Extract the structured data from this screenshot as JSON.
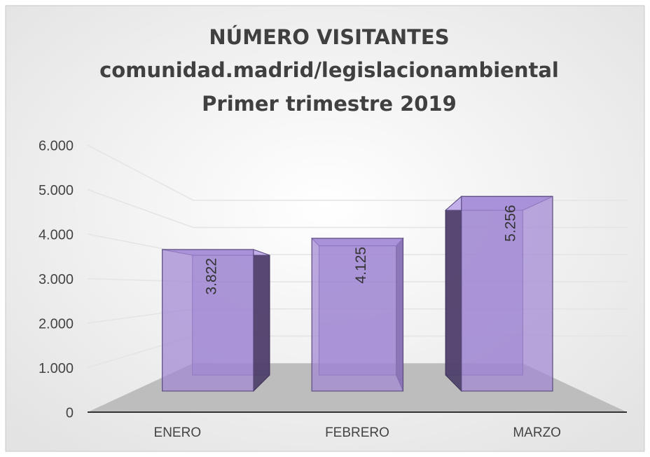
{
  "chart_data": {
    "type": "bar3d",
    "title": [
      "NÚMERO VISITANTES",
      "comunidad.madrid/legislacionambiental",
      "Primer trimestre 2019"
    ],
    "categories": [
      "ENERO",
      "FEBRERO",
      "MARZO"
    ],
    "values": [
      3822,
      4125,
      5256
    ],
    "value_labels": [
      "3.822",
      "4.125",
      "5.256"
    ],
    "color": "#9f86d3",
    "ylim": [
      0,
      6000
    ],
    "yticks": [
      0,
      {
        "value": 1000,
        "label": "1.000"
      },
      {
        "value": 2000,
        "label": "2.000"
      },
      {
        "value": 3000,
        "label": "3.000"
      },
      {
        "value": 4000,
        "label": "4.000"
      },
      {
        "value": 5000,
        "label": "5.000"
      },
      {
        "value": 6000,
        "label": "6.000"
      }
    ],
    "grid": true
  }
}
